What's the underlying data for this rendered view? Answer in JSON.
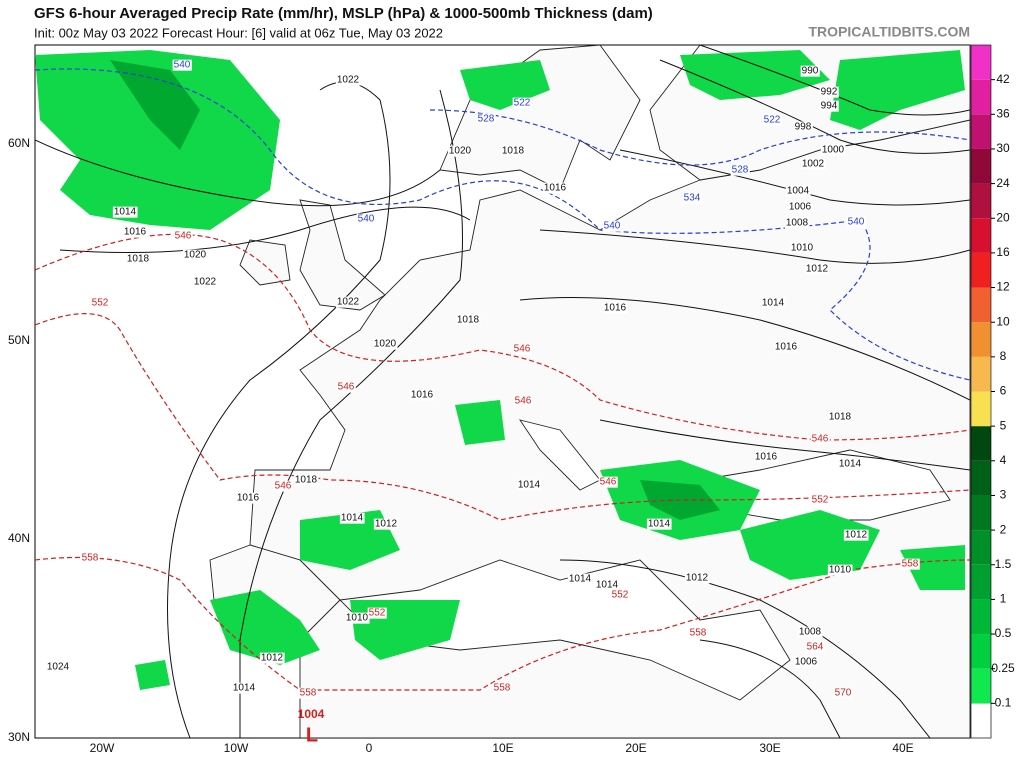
{
  "header": {
    "title": "GFS 6-hour Averaged Precip Rate (mm/hr), MSLP (hPa) & 1000-500mb Thickness (dam)",
    "subtitle": "Init: 00z May 03 2022   Forecast Hour: [6]   valid at 06z Tue, May 03 2022",
    "watermark": "TROPICALTIDBITS.COM"
  },
  "latitude_labels": [
    "60N",
    "50N",
    "40N",
    "30N"
  ],
  "longitude_labels": [
    "20W",
    "10W",
    "0",
    "10E",
    "20E",
    "30E",
    "40E"
  ],
  "isobar_labels": {
    "color": "#111111",
    "labels": [
      "1022",
      "1020",
      "1018",
      "1016",
      "1014",
      "1016",
      "1018",
      "1020",
      "1022",
      "1022",
      "1018",
      "1020",
      "1016",
      "1016",
      "1014",
      "1016",
      "1018",
      "1016",
      "1014",
      "1018",
      "1016",
      "1014",
      "1012",
      "1014",
      "1014",
      "1014",
      "1014",
      "1012",
      "1010",
      "1012",
      "1010",
      "1012",
      "1014",
      "1024",
      "1008",
      "1006",
      "990",
      "992",
      "994",
      "998",
      "1000",
      "1002",
      "1004",
      "1006",
      "1008",
      "1010",
      "1012"
    ]
  },
  "thickness_labels_cold": {
    "color": "#2840d0",
    "labels": [
      "540",
      "522",
      "528",
      "522",
      "528",
      "534",
      "540",
      "540",
      "540"
    ]
  },
  "thickness_labels_warm": {
    "color": "#d02020",
    "labels": [
      "546",
      "552",
      "546",
      "546",
      "546",
      "546",
      "546",
      "546",
      "552",
      "558",
      "552",
      "552",
      "558",
      "558",
      "564",
      "558",
      "558",
      "570"
    ]
  },
  "low_center": {
    "color": "#d02020",
    "pressure": "1004",
    "symbol": "L"
  },
  "colorbar": {
    "ticks": [
      0.1,
      0.25,
      0.5,
      1,
      1.5,
      2,
      3,
      4,
      5,
      6,
      8,
      10,
      12,
      16,
      20,
      24,
      30,
      36,
      42
    ],
    "colors": [
      "#10e850",
      "#00d040",
      "#00b838",
      "#00a030",
      "#009028",
      "#007820",
      "#006018",
      "#004810",
      "#f8e050",
      "#f8b850",
      "#f09030",
      "#f06030",
      "#f02020",
      "#d81030",
      "#b01040",
      "#900838",
      "#c01070",
      "#e020a0",
      "#f030c8"
    ]
  }
}
